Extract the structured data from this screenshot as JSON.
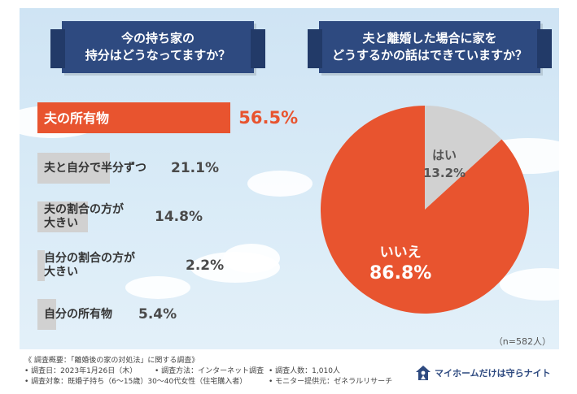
{
  "left_question": {
    "line1": "今の持ち家の",
    "line2": "持分はどうなってますか？"
  },
  "right_question": {
    "line1": "夫と離婚した場合に家を",
    "line2": "どうするかの話はできていますか？"
  },
  "chart_data": [
    {
      "type": "bar",
      "orientation": "horizontal",
      "categories": [
        "夫の所有物",
        "夫と自分で半分ずつ",
        "夫の割合の方が大きい",
        "自分の割合の方が大きい",
        "自分の所有物"
      ],
      "category_lines": [
        [
          "夫の所有物"
        ],
        [
          "夫と自分で半分ずつ"
        ],
        [
          "夫の割合の方が",
          "大きい"
        ],
        [
          "自分の割合の方が",
          "大きい"
        ],
        [
          "自分の所有物"
        ]
      ],
      "values": [
        56.5,
        21.1,
        14.8,
        2.2,
        5.4
      ],
      "value_labels": [
        "56.5%",
        "21.1%",
        "14.8%",
        "2.2%",
        "5.4%"
      ],
      "highlight_index": 0,
      "xlim": [
        0,
        100
      ],
      "colors": {
        "highlight": "#e8542f",
        "default": "#d1d1d1"
      }
    },
    {
      "type": "pie",
      "slices": [
        {
          "label": "はい",
          "value": 13.2,
          "value_label": "13.2%",
          "color": "#d1d1d1"
        },
        {
          "label": "いいえ",
          "value": 86.8,
          "value_label": "86.8%",
          "color": "#e8542f"
        }
      ],
      "note": "（n=582人）"
    }
  ],
  "footer": {
    "survey_summary": "《 調査概要：「離婚後の家の対処法」に関する調査》",
    "survey_date": "• 調査日：2023年1月26日（木）",
    "survey_method": "• 調査方法：インターネット調査",
    "survey_count": "• 調査人数：1,010人",
    "survey_target": "• 調査対象：既婚子持ち（6～15歳）30～40代女性（住宅購入者）",
    "survey_provider": "• モニター提供元：ゼネラルリサーチ"
  },
  "brand": {
    "name": "マイホームだけは守らナイト",
    "icon": "house-person-icon",
    "color": "#2e4a80"
  },
  "colors": {
    "accent": "#e8542f",
    "navy": "#2e4a80",
    "neutral": "#d1d1d1",
    "sky": "#d9ebf7"
  }
}
